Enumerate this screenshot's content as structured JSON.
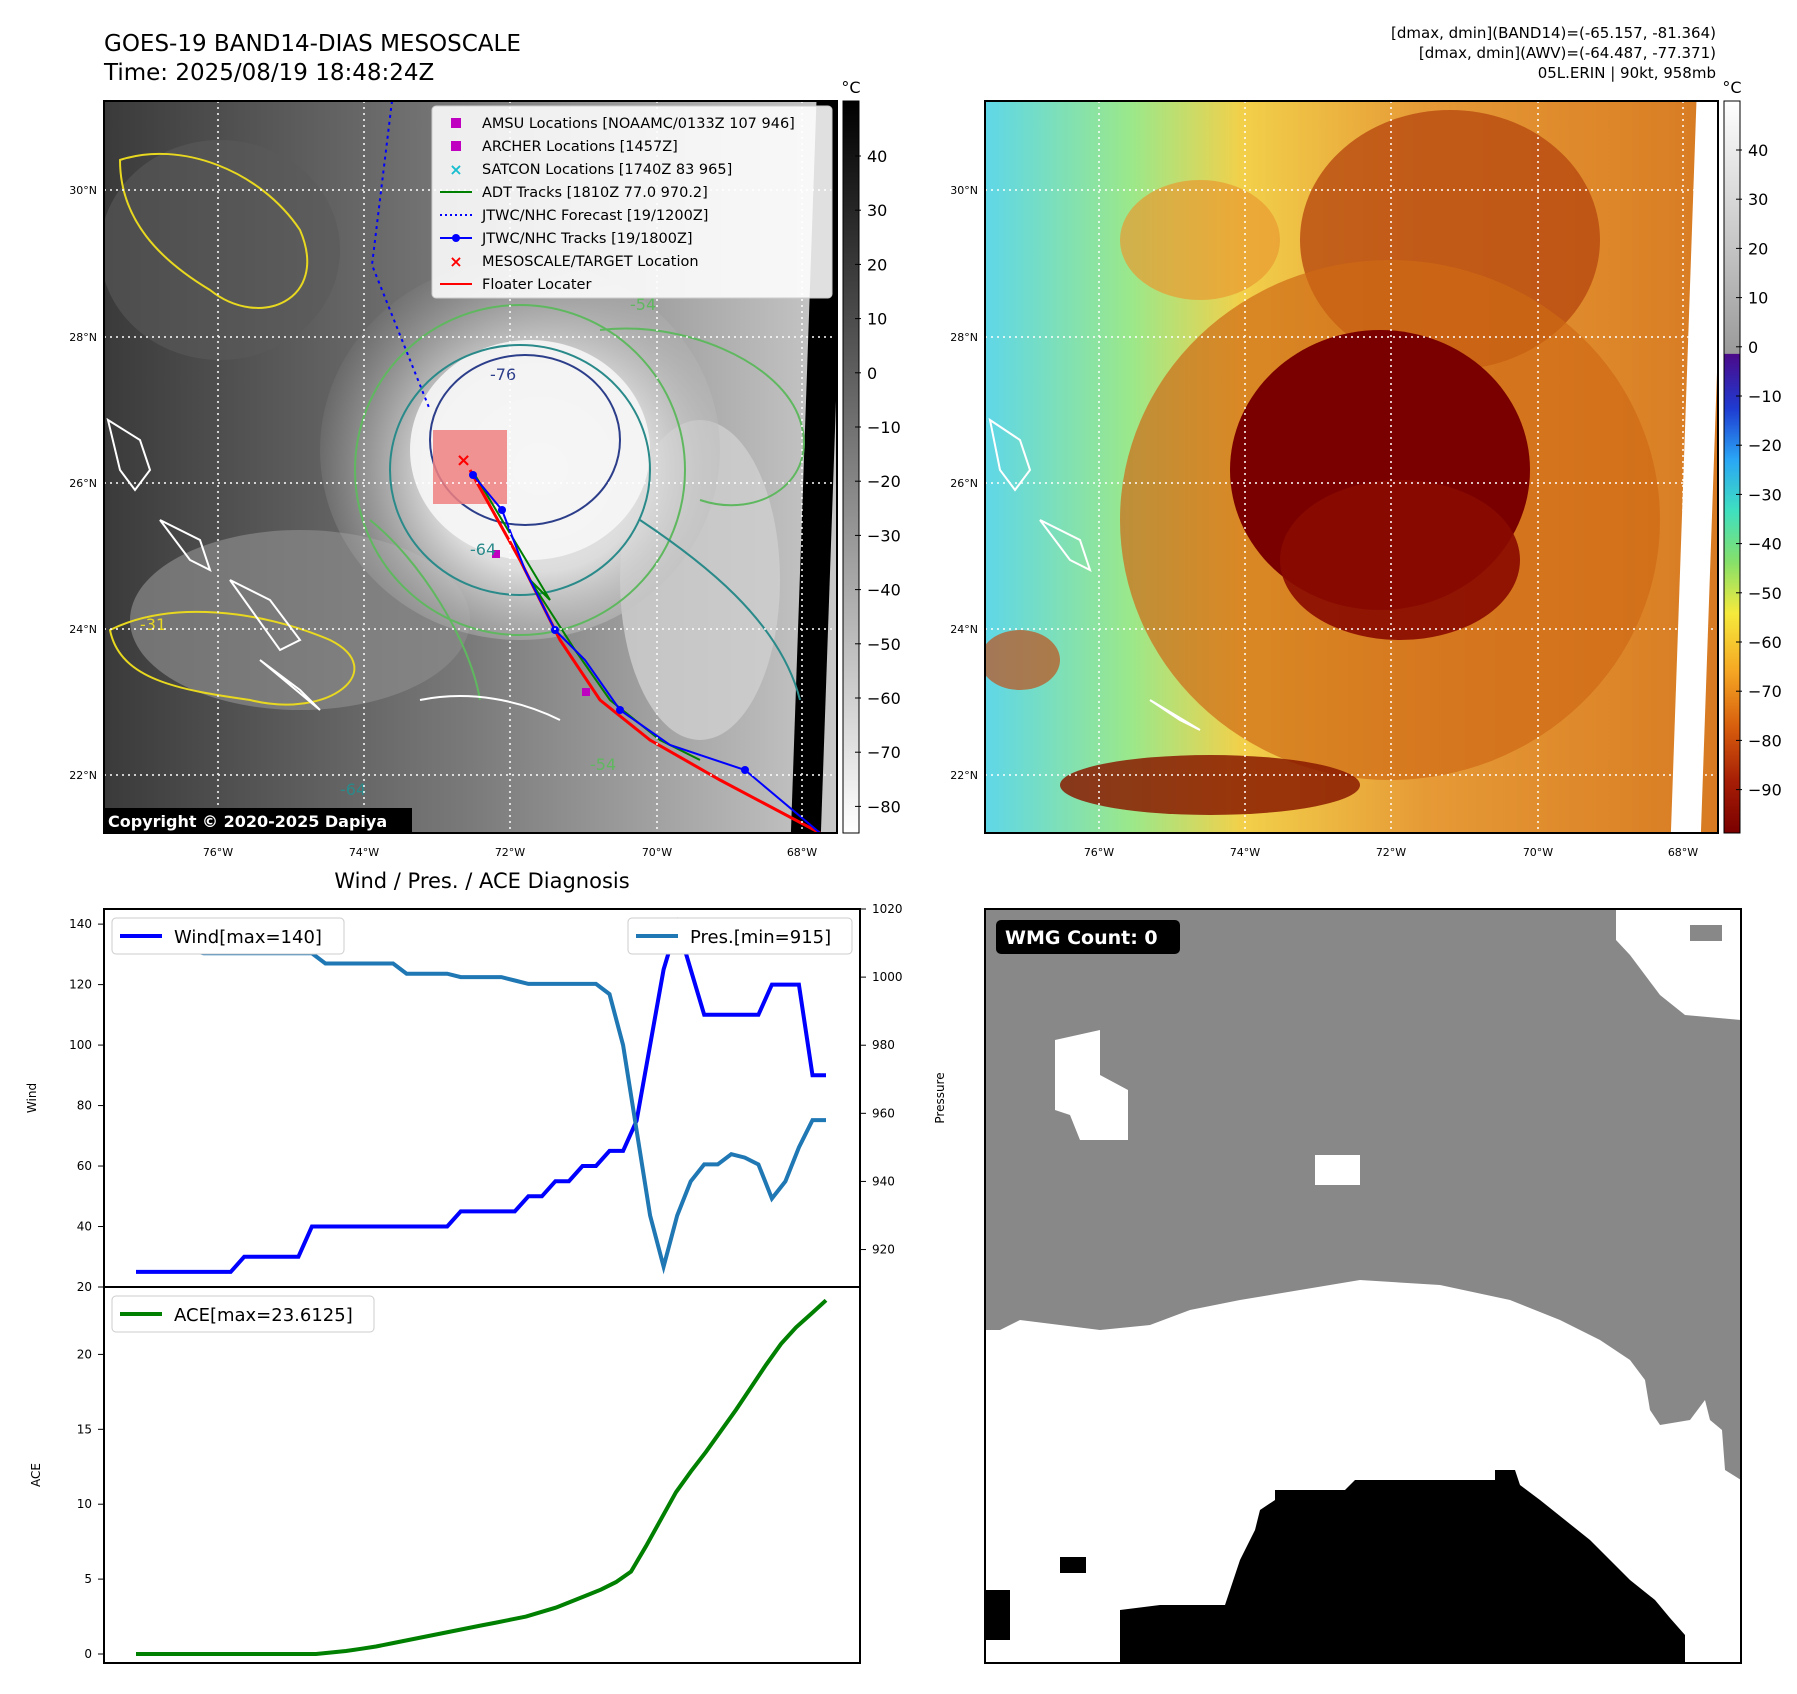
{
  "header": {
    "title_line1": "GOES-19 BAND14-DIAS MESOSCALE",
    "title_line2": "Time: 2025/08/19 18:48:24Z",
    "right_line1": "[dmax, dmin](BAND14)=(-65.157, -81.364)",
    "right_line2": "[dmax, dmin](AWV)=(-64.487, -77.371)",
    "right_line3": "05L.ERIN | 90kt, 958mb"
  },
  "map": {
    "lat_labels": [
      "30°N",
      "28°N",
      "26°N",
      "24°N",
      "22°N"
    ],
    "lon_labels": [
      "76°W",
      "74°W",
      "72°W",
      "70°W",
      "68°W"
    ],
    "copyright": "Copyright © 2020-2025 Dapiya",
    "contour_labels": [
      "-54",
      "-64",
      "-31",
      "-54",
      "-64",
      "-76"
    ]
  },
  "legend": {
    "items": [
      {
        "label": "AMSU Locations [NOAAMC/0133Z 107 946]",
        "color": "#c000c0",
        "symbol": "square"
      },
      {
        "label": "ARCHER Locations [1457Z]",
        "color": "#c000c0",
        "symbol": "square"
      },
      {
        "label": "SATCON Locations [1740Z 83 965]",
        "color": "#17becf",
        "symbol": "x"
      },
      {
        "label": "ADT Tracks [1810Z 77.0 970.2]",
        "color": "#008000",
        "symbol": "line"
      },
      {
        "label": "JTWC/NHC Forecast [19/1200Z]",
        "color": "#0000ff",
        "symbol": "dotted"
      },
      {
        "label": "JTWC/NHC Tracks [19/1800Z]",
        "color": "#0000ff",
        "symbol": "line-dot"
      },
      {
        "label": "MESOSCALE/TARGET Location",
        "color": "#ff0000",
        "symbol": "x"
      },
      {
        "label": "Floater Locater",
        "color": "#ff0000",
        "symbol": "line"
      }
    ]
  },
  "colorbar_gray": {
    "unit": "°C",
    "ticks": [
      "40",
      "30",
      "20",
      "10",
      "0",
      "−10",
      "−20",
      "−30",
      "−40",
      "−50",
      "−60",
      "−70",
      "−80"
    ]
  },
  "colorbar_color": {
    "unit": "°C",
    "ticks": [
      "40",
      "30",
      "20",
      "10",
      "0",
      "−10",
      "−20",
      "−30",
      "−40",
      "−50",
      "−60",
      "−70",
      "−80",
      "−90"
    ]
  },
  "wmg": {
    "label": "WMG Count: 0"
  },
  "chart_data": [
    {
      "type": "line",
      "title": "Wind / Pres. / ACE Diagnosis",
      "ylabel": "Wind",
      "ylabel_right": "Pressure",
      "ylim": [
        20,
        145
      ],
      "ylim_right": [
        909,
        1020
      ],
      "yticks": [
        "20",
        "40",
        "60",
        "80",
        "100",
        "120",
        "140"
      ],
      "yticks_right": [
        "920",
        "940",
        "960",
        "980",
        "1000",
        "1020"
      ],
      "series": [
        {
          "name": "Wind[max=140]",
          "color": "#0000ff",
          "values": [
            25,
            25,
            25,
            25,
            25,
            25,
            25,
            25,
            30,
            30,
            30,
            30,
            30,
            40,
            40,
            40,
            40,
            40,
            40,
            40,
            40,
            40,
            40,
            40,
            45,
            45,
            45,
            45,
            45,
            50,
            50,
            55,
            55,
            60,
            60,
            65,
            65,
            75,
            100,
            125,
            140,
            125,
            110,
            110,
            110,
            110,
            110,
            120,
            120,
            120,
            90,
            90
          ]
        },
        {
          "name": "Pres.[min=915]",
          "color": "#1f77b4",
          "axis": "right",
          "values": [
            1015,
            1015,
            1015,
            1010,
            1008,
            1007,
            1007,
            1007,
            1007,
            1007,
            1007,
            1007,
            1007,
            1007,
            1004,
            1004,
            1004,
            1004,
            1004,
            1004,
            1001,
            1001,
            1001,
            1001,
            1000,
            1000,
            1000,
            1000,
            999,
            998,
            998,
            998,
            998,
            998,
            998,
            995,
            980,
            955,
            930,
            915,
            930,
            940,
            945,
            945,
            948,
            947,
            945,
            935,
            940,
            950,
            958,
            958
          ]
        }
      ]
    },
    {
      "type": "line",
      "ylabel": "ACE",
      "ylim": [
        -0.6,
        24.5
      ],
      "yticks": [
        "0",
        "5",
        "10",
        "15",
        "20"
      ],
      "series": [
        {
          "name": "ACE[max=23.6125]",
          "color": "#008000",
          "values": [
            0,
            0,
            0,
            0,
            0,
            0,
            0,
            0,
            0,
            0,
            0,
            0,
            0,
            0.1,
            0.2,
            0.35,
            0.5,
            0.7,
            0.9,
            1.1,
            1.3,
            1.5,
            1.7,
            1.9,
            2.1,
            2.3,
            2.5,
            2.8,
            3.1,
            3.5,
            3.9,
            4.3,
            4.8,
            5.5,
            7.2,
            9.0,
            10.8,
            12.2,
            13.5,
            14.9,
            16.3,
            17.8,
            19.3,
            20.7,
            21.8,
            22.7,
            23.6125
          ]
        }
      ]
    }
  ]
}
